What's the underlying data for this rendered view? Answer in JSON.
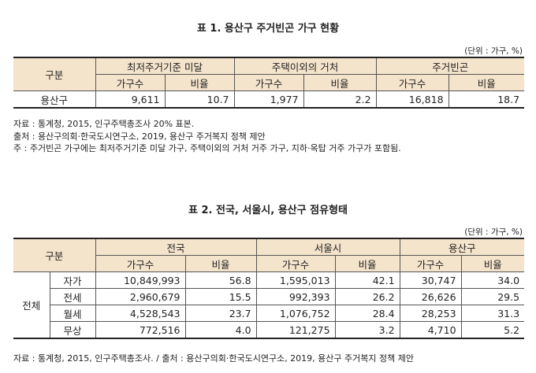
{
  "table1": {
    "title": "표 1. 용산구 주거빈곤 가구 현황",
    "unit": "(단위 : 가구, %)",
    "header_group": "구분",
    "columns": [
      "최저주거기준 미달",
      "주택이외의 거처",
      "주거빈곤"
    ],
    "sub_headers": [
      "가구수",
      "비율",
      "가구수",
      "비율",
      "가구수",
      "비율"
    ],
    "row": {
      "label": "용산구",
      "values": [
        "9,611",
        "10.7",
        "1,977",
        "2.2",
        "16,818",
        "18.7"
      ]
    },
    "notes": [
      "자료 : 통계청, 2015, 인구주택총조사 20% 표본.",
      "출처 : 용산구의회·한국도시연구소, 2019, 용산구 주거복지 정책 제안",
      "주 : 주거빈곤 가구에는 최저주거기준 미달 가구, 주택이외의 거처 거주 가구, 지하·옥탑 거주 가구가 포함됨."
    ]
  },
  "table2": {
    "title": "표 2. 전국, 서울시, 용산구 점유형태",
    "unit": "(단위 : 가구, %)",
    "header_group": "구분",
    "columns": [
      "전국",
      "서울시",
      "용산구"
    ],
    "sub_headers": [
      "가구수",
      "비율",
      "가구수",
      "비율",
      "가구수",
      "비율"
    ],
    "group_label": "전체",
    "rows": [
      {
        "label": "자가",
        "values": [
          "10,849,993",
          "56.8",
          "1,595,013",
          "42.1",
          "30,747",
          "34.0"
        ]
      },
      {
        "label": "전세",
        "values": [
          "2,960,679",
          "15.5",
          "992,393",
          "26.2",
          "26,626",
          "29.5"
        ]
      },
      {
        "label": "월세",
        "values": [
          "4,528,543",
          "23.7",
          "1,076,752",
          "28.4",
          "28,253",
          "31.3"
        ]
      },
      {
        "label": "무상",
        "values": [
          "772,516",
          "4.0",
          "121,275",
          "3.2",
          "4,710",
          "5.2"
        ]
      }
    ],
    "source": "자료 : 통계청, 2015, 인구주택총조사. / 출처 : 용산구의회·한국도시연구소, 2019, 용산구 주거복지 정책 제안"
  }
}
